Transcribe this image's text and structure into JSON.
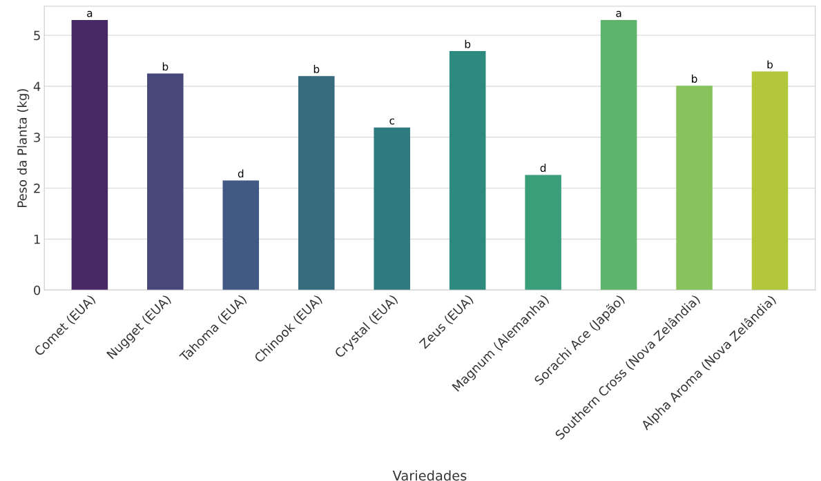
{
  "chart_data": {
    "type": "bar",
    "xlabel": "Variedades",
    "ylabel": "Peso da Planta (kg)",
    "categories": [
      "Comet (EUA)",
      "Nugget (EUA)",
      "Tahoma (EUA)",
      "Chinook (EUA)",
      "Crystal (EUA)",
      "Zeus (EUA)",
      "Magnum (Alemanha)",
      "Sorachi Ace (Japão)",
      "Southern Cross (Nova Zelândia)",
      "Alpha Aroma (Nova Zelândia)"
    ],
    "values": [
      5.3,
      4.25,
      2.15,
      4.2,
      3.19,
      4.69,
      2.26,
      5.3,
      4.01,
      4.29
    ],
    "colors": [
      "#482865",
      "#47477a",
      "#405a83",
      "#376b7e",
      "#2e7a80",
      "#2c8a7e",
      "#3a9e7a",
      "#5cb46d",
      "#87c25c",
      "#b2c73a"
    ],
    "annotations": [
      {
        "text": "a",
        "x": "Comet (EUA)",
        "y": 5.3
      },
      {
        "text": "b",
        "x": "Nugget (EUA)",
        "y": 4.25
      },
      {
        "text": "d",
        "x": "Tahoma (EUA)",
        "y": 2.15
      },
      {
        "text": "b",
        "x": "Chinook (EUA)",
        "y": 4.2
      },
      {
        "text": "c",
        "x": "Crystal (EUA)",
        "y": 3.19
      },
      {
        "text": "b",
        "x": "Zeus (EUA)",
        "y": 4.69
      },
      {
        "text": "d",
        "x": "Magnum (Alemanha)",
        "y": 2.26
      },
      {
        "text": "a",
        "x": "Sorachi Ace (Japão)",
        "y": 5.3
      },
      {
        "text": "b",
        "x": "Southern Cross (Nova Zelândia)",
        "y": 4.01
      },
      {
        "text": "b",
        "x": "Alpha Aroma (Nova Zelândia)",
        "y": 4.29
      }
    ],
    "ylim": [
      0,
      5.57
    ],
    "yticks": [
      0,
      1,
      2,
      3,
      4,
      5
    ],
    "grid": "y",
    "legend": false
  }
}
